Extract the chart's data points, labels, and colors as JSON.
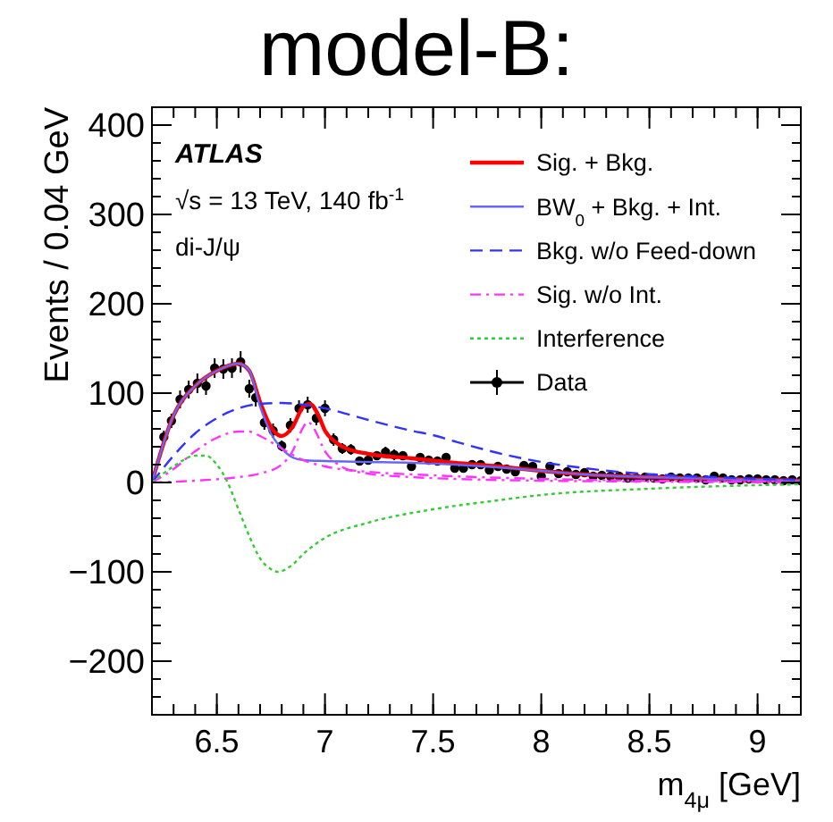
{
  "chart_data": {
    "type": "line",
    "title": "model-B:",
    "xlabel": "m$_{4μ}$ [GeV]",
    "ylabel": "Events / 0.04 GeV",
    "annotations": [
      "ATLAS",
      "√s = 13 TeV, 140 fb$^{-1}$",
      "di-J/ψ"
    ],
    "xlim": [
      6.2,
      9.2
    ],
    "xticks": [
      6.5,
      7,
      7.5,
      8,
      8.5,
      9
    ],
    "ylim": [
      -260,
      420
    ],
    "yticks": [
      {
        "value": -200,
        "label": "−200"
      },
      {
        "value": -100,
        "label": "−100"
      },
      0,
      100,
      200,
      300,
      400
    ],
    "legend": "top right",
    "grid": false,
    "series": [
      {
        "name": "Sig. + Bkg.",
        "color": "#ff0000",
        "line_style": "solid",
        "x": [
          6.2,
          6.3,
          6.4,
          6.5,
          6.6,
          6.65,
          6.7,
          6.75,
          6.8,
          6.85,
          6.9,
          6.93,
          6.97,
          7.0,
          7.05,
          7.1,
          7.2,
          7.4,
          7.6,
          7.8,
          8.0,
          8.2,
          8.5,
          8.8,
          9.2
        ],
        "values": [
          0,
          75,
          108,
          125,
          133,
          125,
          90,
          62,
          52,
          62,
          85,
          88,
          75,
          58,
          45,
          38,
          32,
          27,
          22,
          18,
          13,
          9,
          6,
          4,
          2
        ]
      },
      {
        "name": "BW$_{0}$ + Bkg. + Int.",
        "color": "#6666ff",
        "line_style": "solid",
        "x": [
          6.2,
          6.3,
          6.4,
          6.5,
          6.6,
          6.65,
          6.7,
          6.75,
          6.8,
          6.85,
          6.9,
          7.0,
          7.2,
          7.4,
          7.6,
          7.8,
          8.0,
          8.2,
          8.5,
          8.8,
          9.2
        ],
        "values": [
          0,
          75,
          108,
          125,
          133,
          125,
          85,
          55,
          38,
          28,
          25,
          24,
          23,
          22,
          20,
          17,
          13,
          9,
          6,
          4,
          2
        ]
      },
      {
        "name": "Bkg. w/o Feed-down",
        "color": "#3333ff",
        "line_style": "dashed",
        "x": [
          6.2,
          6.3,
          6.4,
          6.5,
          6.6,
          6.7,
          6.8,
          6.9,
          7.0,
          7.2,
          7.4,
          7.5,
          7.6,
          7.8,
          8.0,
          8.2,
          8.4,
          8.6,
          8.8,
          9.0,
          9.2
        ],
        "values": [
          0,
          30,
          55,
          72,
          83,
          88,
          89,
          87,
          83,
          70,
          58,
          53,
          46,
          33,
          23,
          16,
          11,
          8,
          6,
          4,
          3
        ]
      },
      {
        "name": "Sig. w/o Int.",
        "color": "#ff33ff",
        "line_style": "dashdot",
        "x": [
          6.2,
          6.3,
          6.4,
          6.5,
          6.6,
          6.65,
          6.7,
          6.8,
          6.9,
          7.0,
          7.2,
          7.5,
          8.0,
          8.5,
          9.2
        ],
        "values": [
          0,
          15,
          35,
          50,
          57,
          57,
          52,
          38,
          25,
          18,
          12,
          8,
          4,
          2,
          1
        ]
      },
      {
        "color": "#ff33ff",
        "line_style": "dashdot",
        "x": [
          6.2,
          6.4,
          6.6,
          6.7,
          6.8,
          6.85,
          6.9,
          6.92,
          6.95,
          7.0,
          7.05,
          7.1,
          7.2,
          7.4,
          7.6,
          8.0,
          8.5,
          9.2
        ],
        "values": [
          0,
          2,
          6,
          10,
          20,
          35,
          62,
          68,
          60,
          35,
          22,
          15,
          10,
          6,
          4,
          2,
          1,
          0
        ]
      },
      {
        "name": "Interference",
        "color": "#33cc33",
        "line_style": "dotted",
        "x": [
          6.2,
          6.3,
          6.4,
          6.45,
          6.5,
          6.55,
          6.6,
          6.65,
          6.7,
          6.75,
          6.78,
          6.85,
          6.9,
          7.0,
          7.2,
          7.5,
          7.8,
          8.0,
          8.5,
          9.0,
          9.2
        ],
        "values": [
          0,
          18,
          30,
          30,
          20,
          0,
          -30,
          -60,
          -85,
          -97,
          -100,
          -92,
          -80,
          -62,
          -45,
          -30,
          -20,
          -14,
          -7,
          -3,
          -2
        ]
      },
      {
        "name": "Data",
        "type": "scatter",
        "marker": "circle",
        "color": "#000000",
        "x": [
          6.255,
          6.29,
          6.33,
          6.37,
          6.41,
          6.45,
          6.49,
          6.53,
          6.57,
          6.61,
          6.65,
          6.68,
          6.72,
          6.76,
          6.8,
          6.84,
          6.88,
          6.92,
          6.96,
          7.0,
          7.04,
          7.08,
          7.12,
          7.16,
          7.2,
          7.24,
          7.28,
          7.32,
          7.36,
          7.4,
          7.44,
          7.48,
          7.52,
          7.56,
          7.6,
          7.64,
          7.68,
          7.72,
          7.76,
          7.8,
          7.84,
          7.88,
          7.92,
          7.96,
          8.0,
          8.04,
          8.08,
          8.12,
          8.16,
          8.2,
          8.24,
          8.28,
          8.32,
          8.36,
          8.4,
          8.44,
          8.48,
          8.52,
          8.56,
          8.6,
          8.64,
          8.68,
          8.72,
          8.76,
          8.8,
          8.84,
          8.88,
          8.92,
          8.96,
          9.0,
          9.04,
          9.08,
          9.12,
          9.16,
          9.2
        ],
        "values": [
          51,
          69,
          93,
          104,
          111,
          108,
          128,
          127,
          128,
          135,
          105,
          95,
          67,
          58,
          41,
          64,
          83,
          87,
          72,
          83,
          48,
          38,
          37,
          24,
          25,
          30,
          34,
          31,
          30,
          18,
          28,
          25,
          24,
          28,
          16,
          16,
          20,
          20,
          14,
          18,
          15,
          12,
          19,
          18,
          7,
          18,
          10,
          12,
          9,
          11,
          7,
          8,
          7,
          7,
          5,
          5,
          6,
          5,
          4,
          6,
          5,
          5,
          5,
          3,
          7,
          5,
          3,
          3,
          4,
          4,
          3,
          3,
          2,
          3,
          2
        ],
        "errors": [
          7,
          8,
          10,
          10,
          11,
          10,
          11,
          11,
          11,
          12,
          10,
          10,
          8,
          8,
          6,
          8,
          9,
          9,
          8,
          9,
          7,
          6,
          6,
          5,
          5,
          5,
          6,
          6,
          5,
          4,
          5,
          5,
          5,
          5,
          4,
          4,
          4,
          4,
          4,
          4,
          4,
          3,
          4,
          4,
          3,
          4,
          3,
          3,
          3,
          3,
          3,
          3,
          3,
          3,
          2,
          2,
          2,
          2,
          2,
          2,
          2,
          2,
          2,
          2,
          3,
          2,
          2,
          2,
          2,
          2,
          2,
          2,
          1,
          2,
          1
        ]
      }
    ]
  }
}
